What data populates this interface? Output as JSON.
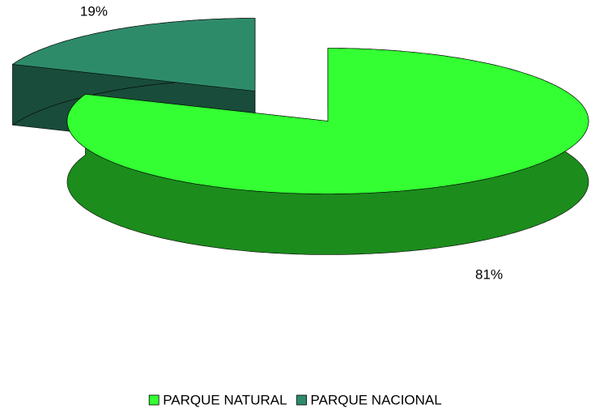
{
  "chart_data": {
    "type": "pie",
    "categories": [
      "PARQUE NATURAL",
      "PARQUE NACIONAL"
    ],
    "values": [
      81,
      19
    ],
    "value_labels": [
      "81%",
      "19%"
    ],
    "colors": [
      "#33ff33",
      "#2e8b6a"
    ],
    "legend": "bottom"
  }
}
